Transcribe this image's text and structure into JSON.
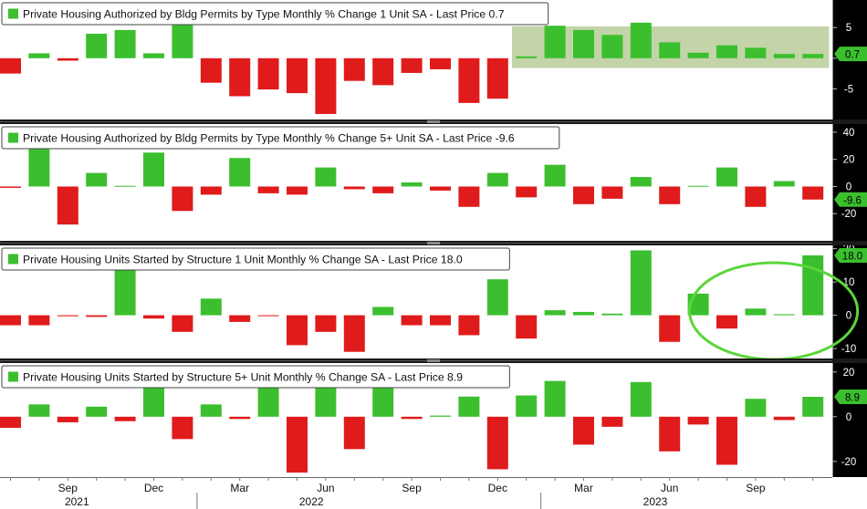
{
  "colors": {
    "positive": "#3bbf2e",
    "negative": "#e01b1b",
    "panel_bg": "#ffffff",
    "separator": "#555555",
    "last_label_bg": "#3bbf2e",
    "highlight_box": "#8fb060",
    "highlight_circle": "#5ad63a"
  },
  "chart_data": [
    {
      "type": "bar",
      "legend": "Private Housing Authorized by Bldg Permits by Type Monthly % Change 1 Unit SA - Last Price 0.7",
      "last_value_label": "0.7",
      "ylim": [
        -10,
        9.5
      ],
      "yticks": [
        5,
        0,
        -5
      ],
      "ytick_labels": [
        "5",
        "",
        "-5"
      ],
      "values": [
        -2.5,
        0.8,
        -0.4,
        4,
        4.6,
        0.8,
        5.4,
        -4,
        -6.2,
        -5.1,
        -5.7,
        -9.1,
        -3.7,
        -4.4,
        -2.4,
        -1.8,
        -7.3,
        -6.6,
        0.3,
        5.3,
        4.6,
        3.8,
        5.8,
        2.6,
        0.9,
        2.1,
        1.7,
        0.7,
        0.7
      ],
      "highlight_band": {
        "start_index": 18,
        "end_index": 28,
        "y": [
          -1.6,
          5.2
        ]
      }
    },
    {
      "type": "bar",
      "legend": "Private Housing Authorized by Bldg Permits by Type Monthly % Change 5+ Unit SA - Last Price -9.6",
      "last_value_label": "-9.6",
      "ylim": [
        -40,
        46
      ],
      "yticks": [
        40,
        20,
        0,
        -20
      ],
      "ytick_labels": [
        "40",
        "20",
        "0",
        "-20"
      ],
      "values": [
        -1,
        32,
        -28,
        10,
        0.5,
        25,
        -18,
        -6,
        21,
        -5,
        -6,
        14,
        -2,
        -5,
        3,
        -3,
        -15,
        10,
        -8,
        16,
        -13,
        -9,
        7,
        -13,
        0.5,
        14,
        -15,
        4,
        -9.6
      ]
    },
    {
      "type": "bar",
      "legend": "Private Housing Units Started by Structure 1 Unit Monthly % Change SA - Last Price 18.0",
      "last_value_label": "18.0",
      "ylim": [
        -13,
        21
      ],
      "yticks": [
        20,
        10,
        0,
        -10
      ],
      "ytick_labels": [
        "20",
        "10",
        "0",
        "-10"
      ],
      "values": [
        -3,
        -3,
        -0.3,
        -0.5,
        14,
        -1,
        -5,
        5,
        -2,
        -0.2,
        -9,
        -5,
        -11,
        2.5,
        -3,
        -3,
        -6,
        10.8,
        -7,
        1.5,
        1,
        0.5,
        19.5,
        -8,
        6.5,
        -4,
        2,
        0.3,
        18
      ],
      "highlight_circle_around_indices": [
        25,
        28
      ]
    },
    {
      "type": "bar",
      "legend": "Private Housing Units Started by Structure 5+ Unit Monthly % Change SA - Last Price 8.9",
      "last_value_label": "8.9",
      "ylim": [
        -27,
        24
      ],
      "yticks": [
        20,
        0,
        -20
      ],
      "ytick_labels": [
        "20",
        "0",
        "-20"
      ],
      "values": [
        -5,
        5.5,
        -2.5,
        4.5,
        -2,
        13,
        -10,
        5.5,
        -1,
        15,
        -25,
        14,
        -14.5,
        15,
        -1,
        0.5,
        9,
        -23.5,
        9.5,
        16,
        -12.5,
        -4.5,
        15.5,
        -15.5,
        -3.5,
        -21.5,
        8,
        -1.5,
        8.9
      ]
    }
  ],
  "x_axis": {
    "months": [
      "Sep",
      "Dec",
      "Mar",
      "Jun",
      "Sep",
      "Dec",
      "Mar",
      "Jun",
      "Sep"
    ],
    "month_indices": [
      2,
      5,
      8,
      11,
      14,
      17,
      20,
      23,
      26
    ],
    "years": [
      "2021",
      "2022",
      "2023"
    ],
    "year_center_indices": [
      2,
      10.5,
      22.5
    ]
  }
}
